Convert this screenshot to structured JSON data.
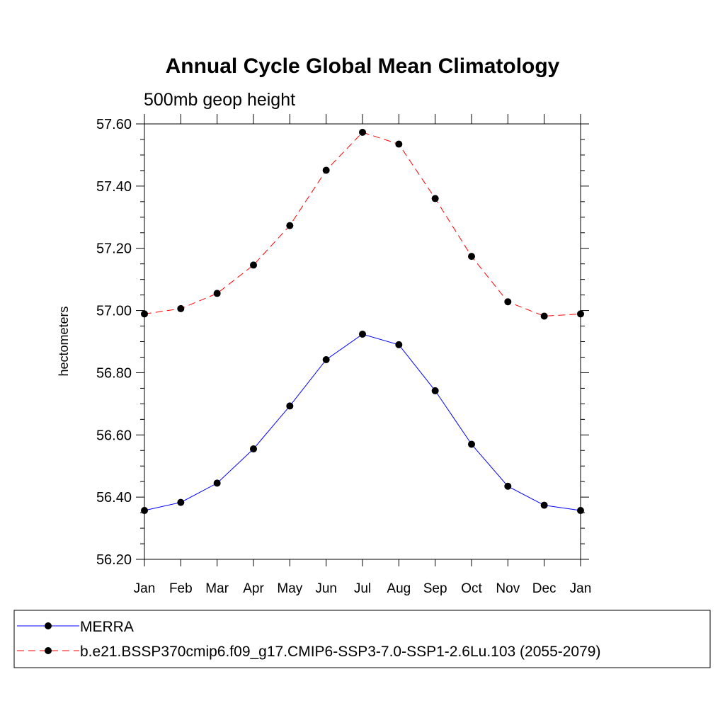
{
  "chart_data": {
    "type": "line",
    "title": "Annual Cycle Global Mean Climatology",
    "subtitle": "500mb geop height",
    "ylabel": "hectometers",
    "xlabel": "",
    "categories": [
      "Jan",
      "Feb",
      "Mar",
      "Apr",
      "May",
      "Jun",
      "Jul",
      "Aug",
      "Sep",
      "Oct",
      "Nov",
      "Dec",
      "Jan"
    ],
    "ylim": [
      56.2,
      57.6
    ],
    "yticks": [
      "56.20",
      "56.40",
      "56.60",
      "56.80",
      "57.00",
      "57.20",
      "57.40",
      "57.60"
    ],
    "grid": false,
    "legend_position": "bottom",
    "series": [
      {
        "name": "MERRA",
        "color": "#0000ff",
        "dash": "solid",
        "marker": "filled-circle",
        "values": [
          56.357,
          56.383,
          56.445,
          56.555,
          56.693,
          56.842,
          56.924,
          56.89,
          56.742,
          56.57,
          56.435,
          56.374,
          56.357
        ]
      },
      {
        "name": "b.e21.BSSP370cmip6.f09_g17.CMIP6-SSP3-7.0-SSP1-2.6Lu.103 (2055-2079)",
        "color": "#ff0000",
        "dash": "dashed",
        "marker": "filled-circle",
        "values": [
          56.989,
          57.006,
          57.055,
          57.146,
          57.273,
          57.451,
          57.573,
          57.535,
          57.36,
          57.174,
          57.028,
          56.982,
          56.989
        ]
      }
    ]
  }
}
